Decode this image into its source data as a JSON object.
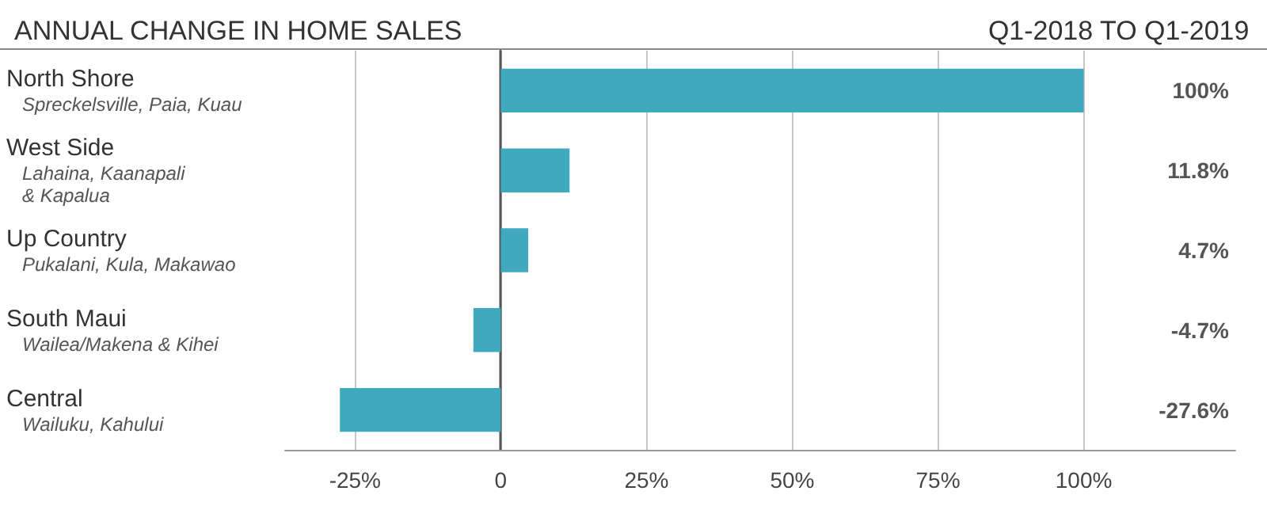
{
  "chart_data": {
    "type": "bar",
    "orientation": "horizontal",
    "title": "ANNUAL CHANGE IN HOME SALES",
    "subtitle": "Q1-2018 TO Q1-2019",
    "categories": [
      "North Shore\nSpreckelsville, Paia, Kuau",
      "West Side\nLahaina, Kaanapali\n& Kapalua",
      "Up Country\nPukalani, Kula, Makawao",
      "South Maui\nWailea/Makena & Kihei",
      "Central\nWailuku, Kahului"
    ],
    "values": [
      100,
      11.8,
      4.7,
      -4.7,
      -27.6
    ],
    "value_labels": [
      "100%",
      "11.8%",
      "4.7%",
      "-4.7%",
      "-27.6%"
    ],
    "color": "#3fa9bd",
    "xlim": [
      -37,
      126
    ],
    "xticks": [
      {
        "value": -25,
        "label": "-25%"
      },
      {
        "value": 0,
        "label": "0"
      },
      {
        "value": 25,
        "label": "25%"
      },
      {
        "value": 50,
        "label": "50%"
      },
      {
        "value": 75,
        "label": "75%"
      },
      {
        "value": 100,
        "label": "100%"
      }
    ],
    "grid": "x"
  }
}
